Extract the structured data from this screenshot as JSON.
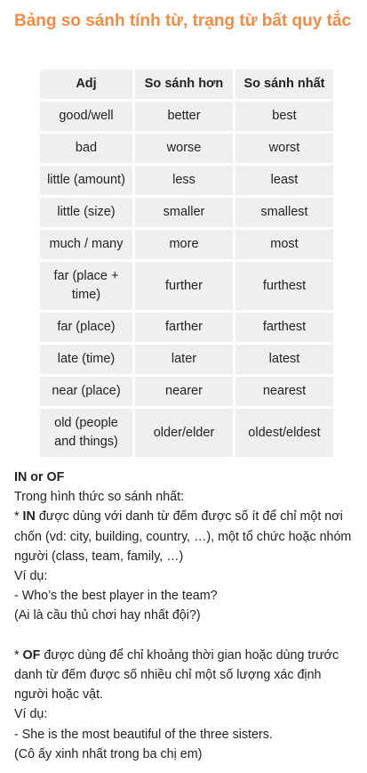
{
  "title": "Bảng so sánh tính từ, trạng từ bất quy tắc",
  "table": {
    "headers": [
      "Adj",
      "So sánh hơn",
      "So sánh nhất"
    ],
    "rows": [
      [
        "good/well",
        "better",
        "best"
      ],
      [
        "bad",
        "worse",
        "worst"
      ],
      [
        "little (amount)",
        "less",
        "least"
      ],
      [
        "little (size)",
        "smaller",
        "smallest"
      ],
      [
        "much / many",
        "more",
        "most"
      ],
      [
        "far (place + time)",
        "further",
        "furthest"
      ],
      [
        "far (place)",
        "farther",
        "farthest"
      ],
      [
        "late (time)",
        "later",
        "latest"
      ],
      [
        "near (place)",
        "nearer",
        "nearest"
      ],
      [
        "old (people and things)",
        "older/elder",
        "oldest/eldest"
      ]
    ]
  },
  "section": {
    "heading": "IN or OF",
    "intro": "Trong hình thức so sánh nhất:",
    "in_prefix": "* ",
    "in_keyword": "IN",
    "in_text": " được dùng với danh từ đếm được số ít để chỉ một nơi chốn (vd: city, building, country, …), một tổ chức hoặc nhóm người (class, team, family, …)",
    "example_label_1": "Ví dụ:",
    "example_en_1": "- Who’s the best player in the team?",
    "example_vi_1": "(Ai là cầu thủ chơi hay nhất đội?)",
    "of_prefix": "* ",
    "of_keyword": "OF",
    "of_text": " được dùng để chỉ khoảng thời gian hoặc dùng trước danh từ đếm được số nhiều chỉ một số lượng xác định người hoặc vật.",
    "example_label_2": "Ví dụ:",
    "example_en_2": "- She is the most beautiful of the three sisters.",
    "example_vi_2": "(Cô ấy xinh nhất trong ba chị em)"
  }
}
